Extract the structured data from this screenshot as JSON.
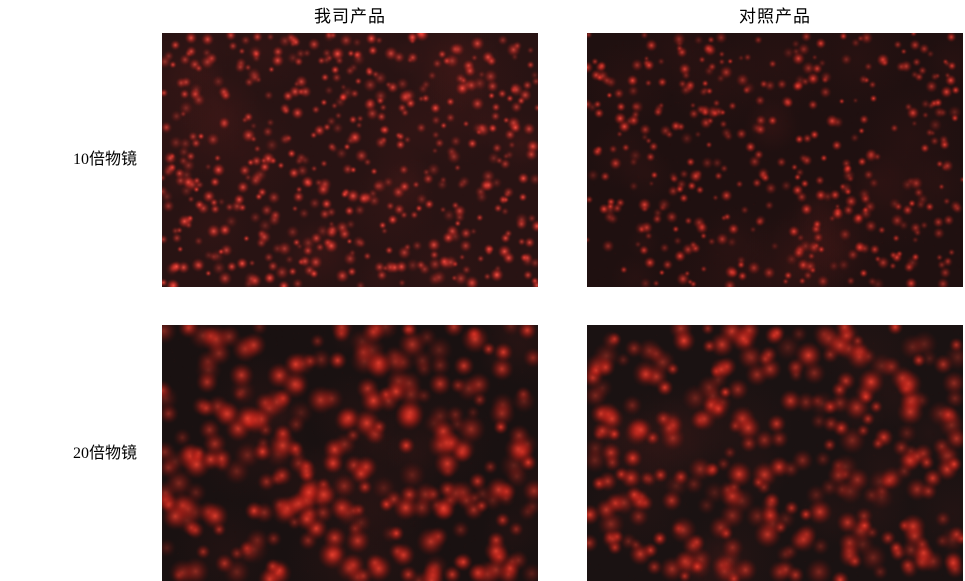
{
  "figure": {
    "background_color": "#ffffff",
    "text_color": "#000000"
  },
  "columns": [
    {
      "label": "我司产品"
    },
    {
      "label": "对照产品"
    }
  ],
  "rows": [
    {
      "label": "10倍物镜"
    },
    {
      "label": "20倍物镜"
    }
  ],
  "panels": [
    {
      "name": "micrograph-ours-10x",
      "column_label": "我司产品",
      "row_label": "10倍物镜",
      "background": "#281313",
      "cell_color": "#ff5648",
      "cell_count": 540,
      "cell_radius_min": 1.6,
      "cell_radius_max": 3.6,
      "haze_count": 28,
      "seed": 101
    },
    {
      "name": "micrograph-control-10x",
      "column_label": "对照产品",
      "row_label": "10倍物镜",
      "background": "#1f1010",
      "cell_color": "#f24a3c",
      "cell_count": 430,
      "cell_radius_min": 1.5,
      "cell_radius_max": 3.4,
      "haze_count": 24,
      "seed": 202
    },
    {
      "name": "micrograph-ours-20x",
      "column_label": "我司产品",
      "row_label": "20倍物镜",
      "background": "#191111",
      "cell_color": "#e8402f",
      "cell_count": 300,
      "cell_radius_min": 3.4,
      "cell_radius_max": 7.2,
      "haze_count": 20,
      "seed": 303
    },
    {
      "name": "micrograph-control-20x",
      "column_label": "对照产品",
      "row_label": "20倍物镜",
      "background": "#1a1212",
      "cell_color": "#e8402f",
      "cell_count": 315,
      "cell_radius_min": 3.2,
      "cell_radius_max": 6.8,
      "haze_count": 20,
      "seed": 404
    }
  ]
}
